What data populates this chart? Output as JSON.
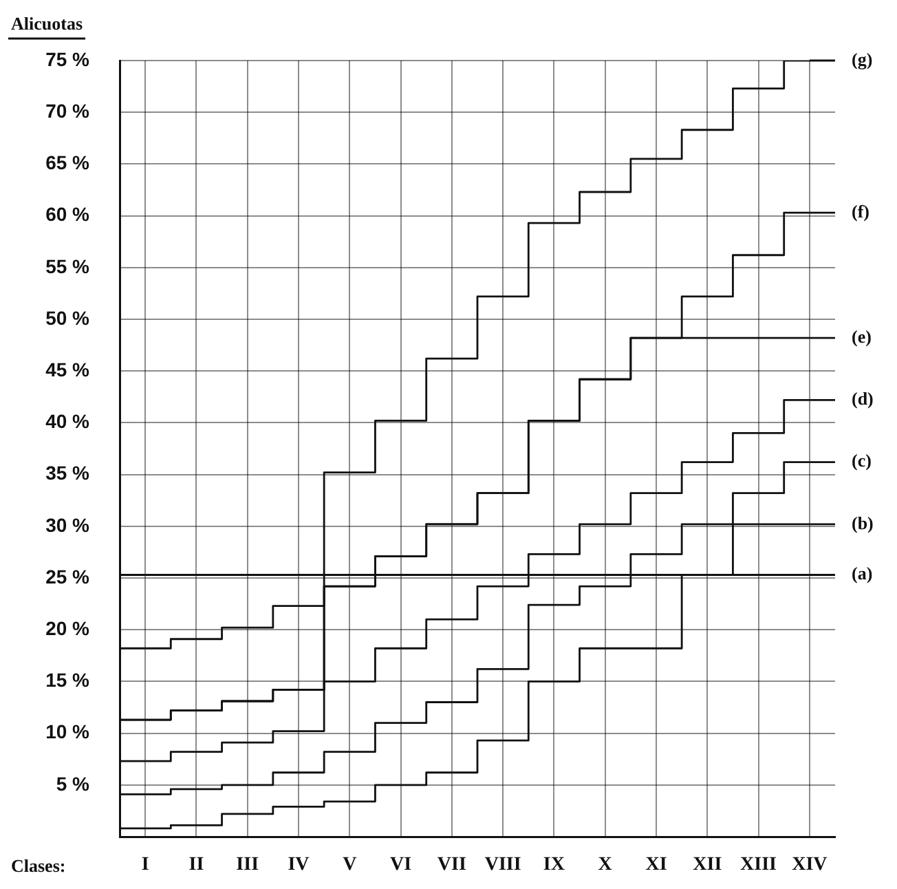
{
  "chart_data": {
    "type": "step",
    "ylabel": "Alicuotas",
    "xlabel": "Clases:",
    "categories": [
      "I",
      "II",
      "III",
      "IV",
      "V",
      "VI",
      "VII",
      "VIII",
      "IX",
      "X",
      "XI",
      "XII",
      "XIII",
      "XIV"
    ],
    "ylim": [
      0,
      75
    ],
    "yticks": [
      {
        "value": 5,
        "label": "5 %"
      },
      {
        "value": 10,
        "label": "10 %"
      },
      {
        "value": 15,
        "label": "15 %"
      },
      {
        "value": 20,
        "label": "20 %"
      },
      {
        "value": 25,
        "label": "25 %"
      },
      {
        "value": 30,
        "label": "30 %"
      },
      {
        "value": 35,
        "label": "35 %"
      },
      {
        "value": 40,
        "label": "40 %"
      },
      {
        "value": 45,
        "label": "45 %"
      },
      {
        "value": 50,
        "label": "50 %"
      },
      {
        "value": 55,
        "label": "55 %"
      },
      {
        "value": 60,
        "label": "60 %"
      },
      {
        "value": 65,
        "label": "65 %"
      },
      {
        "value": 70,
        "label": "70 %"
      },
      {
        "value": 75,
        "label": "75 %"
      }
    ],
    "grid": true,
    "legend": "right",
    "series": [
      {
        "name": "(a)",
        "color": "#111111",
        "values": [
          25.3,
          25.3,
          25.3,
          25.3,
          25.3,
          25.3,
          25.3,
          25.3,
          25.3,
          25.3,
          25.3,
          25.3,
          25.3,
          25.3
        ]
      },
      {
        "name": "(b)",
        "color": "#111111",
        "values": [
          0.8,
          1.1,
          2.2,
          2.9,
          3.4,
          5.0,
          6.2,
          9.3,
          15.0,
          18.2,
          18.2,
          25.3,
          30.2,
          30.2
        ]
      },
      {
        "name": "(c)",
        "color": "#111111",
        "values": [
          4.1,
          4.6,
          5.0,
          6.2,
          8.2,
          11.0,
          13.0,
          16.2,
          22.4,
          24.2,
          27.3,
          30.2,
          33.2,
          36.2
        ]
      },
      {
        "name": "(d)",
        "color": "#111111",
        "values": [
          7.3,
          8.2,
          9.1,
          10.2,
          15.0,
          18.2,
          21.0,
          24.2,
          27.3,
          30.2,
          33.2,
          36.2,
          39.0,
          42.2
        ]
      },
      {
        "name": "(e)",
        "color": "#111111",
        "values": [
          11.3,
          12.2,
          13.1,
          14.2,
          24.2,
          27.1,
          30.2,
          33.2,
          40.2,
          44.2,
          48.2,
          48.2,
          48.2,
          48.2
        ]
      },
      {
        "name": "(f)",
        "color": "#111111",
        "values": [
          11.3,
          12.2,
          13.1,
          14.2,
          24.2,
          27.1,
          30.2,
          33.2,
          40.2,
          44.2,
          48.2,
          52.2,
          56.2,
          60.3
        ]
      },
      {
        "name": "(g)",
        "color": "#111111",
        "values": [
          18.2,
          19.1,
          20.2,
          22.3,
          35.2,
          40.2,
          46.2,
          52.2,
          59.3,
          62.3,
          65.5,
          68.3,
          72.3,
          75
        ]
      }
    ]
  }
}
